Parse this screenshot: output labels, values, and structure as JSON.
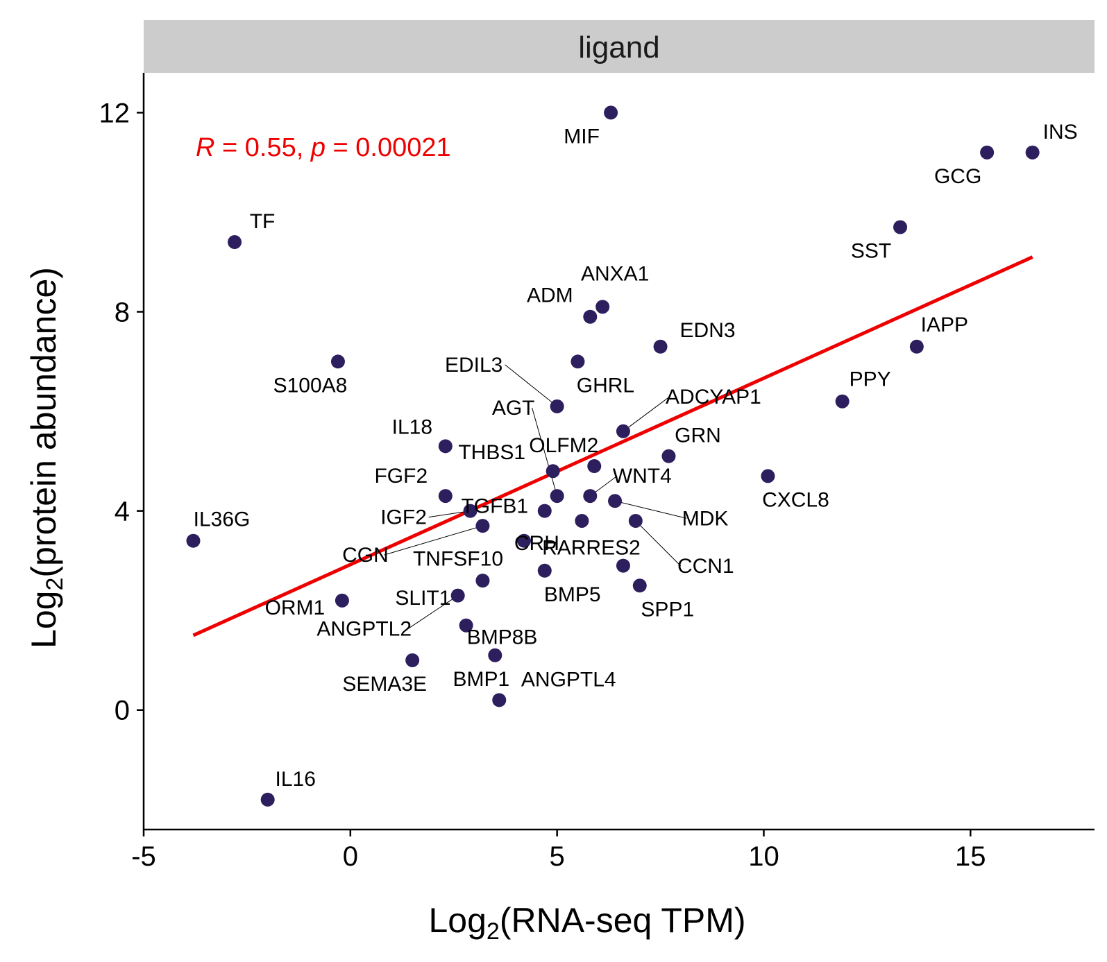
{
  "chart_data": {
    "type": "scatter",
    "facet_label": "ligand",
    "xlabel": {
      "prefix": "Log",
      "sub": "2",
      "rest": "(RNA-seq TPM)"
    },
    "ylabel": {
      "prefix": "Log",
      "sub": "2",
      "rest": "(protein abundance)"
    },
    "xlim": [
      -5,
      18
    ],
    "ylim": [
      -2.4,
      12.8
    ],
    "x_ticks": [
      -5,
      0,
      5,
      10,
      15
    ],
    "y_ticks": [
      0,
      4,
      8,
      12
    ],
    "x_tick_labels": [
      "-5",
      "0",
      "5",
      "10",
      "15"
    ],
    "y_tick_labels": [
      "0",
      "4",
      "8",
      "12"
    ],
    "grid": false,
    "point_color": "#2d1e5e",
    "fit_color": "#ee0000",
    "annotation": {
      "r_symbol": "R",
      "r_value": " = 0.55, ",
      "p_symbol": "p",
      "p_value": " = 0.00021",
      "color": "#ee0000"
    },
    "regression": {
      "x": [
        -3.8,
        16.5
      ],
      "y": [
        1.5,
        9.1
      ]
    },
    "points": [
      {
        "label": "MIF",
        "x": 6.3,
        "y": 12.0
      },
      {
        "label": "INS",
        "x": 16.5,
        "y": 11.2
      },
      {
        "label": "GCG",
        "x": 15.4,
        "y": 11.2
      },
      {
        "label": "SST",
        "x": 13.3,
        "y": 9.7
      },
      {
        "label": "TF",
        "x": -2.8,
        "y": 9.4
      },
      {
        "label": "ANXA1",
        "x": 6.1,
        "y": 8.1
      },
      {
        "label": "ADM",
        "x": 5.8,
        "y": 7.9
      },
      {
        "label": "EDN3",
        "x": 7.5,
        "y": 7.3
      },
      {
        "label": "IAPP",
        "x": 13.7,
        "y": 7.3
      },
      {
        "label": "S100A8",
        "x": -0.3,
        "y": 7.0
      },
      {
        "label": "GHRL",
        "x": 5.5,
        "y": 7.0
      },
      {
        "label": "EDIL3",
        "x": 5.0,
        "y": 6.1
      },
      {
        "label": "PPY",
        "x": 11.9,
        "y": 6.2
      },
      {
        "label": "ADCYAP1",
        "x": 6.6,
        "y": 5.6
      },
      {
        "label": "IL18",
        "x": 2.3,
        "y": 5.3
      },
      {
        "label": "GRN",
        "x": 7.7,
        "y": 5.1
      },
      {
        "label": "OLFM2",
        "x": 5.9,
        "y": 4.9
      },
      {
        "label": "THBS1",
        "x": 4.9,
        "y": 4.8
      },
      {
        "label": "CXCL8",
        "x": 10.1,
        "y": 4.7
      },
      {
        "label": "FGF2",
        "x": 2.3,
        "y": 4.3
      },
      {
        "label": "AGT",
        "x": 5.0,
        "y": 4.3
      },
      {
        "label": "WNT4",
        "x": 5.8,
        "y": 4.3
      },
      {
        "label": "MDK",
        "x": 6.4,
        "y": 4.2
      },
      {
        "label": "TGFB1",
        "x": 4.7,
        "y": 4.0
      },
      {
        "label": "IGF2",
        "x": 2.9,
        "y": 4.0
      },
      {
        "label": "CRH",
        "x": 5.6,
        "y": 3.8
      },
      {
        "label": "CCN1",
        "x": 6.9,
        "y": 3.8
      },
      {
        "label": "CGN",
        "x": 3.2,
        "y": 3.7
      },
      {
        "label": "IL36G",
        "x": -3.8,
        "y": 3.4
      },
      {
        "label": "TNFSF10",
        "x": 4.2,
        "y": 3.4
      },
      {
        "label": "RARRES2",
        "x": 6.6,
        "y": 2.9
      },
      {
        "label": "BMP5",
        "x": 4.7,
        "y": 2.8
      },
      {
        "label": "SLIT1",
        "x": 3.2,
        "y": 2.6
      },
      {
        "label": "SPP1",
        "x": 7.0,
        "y": 2.5
      },
      {
        "label": "ANGPTL2",
        "x": 2.6,
        "y": 2.3
      },
      {
        "label": "ORM1",
        "x": -0.2,
        "y": 2.2
      },
      {
        "label": "BMP8B",
        "x": 2.8,
        "y": 1.7
      },
      {
        "label": "BMP1",
        "x": 3.5,
        "y": 1.1
      },
      {
        "label": "SEMA3E",
        "x": 1.5,
        "y": 1.0
      },
      {
        "label": "ANGPTL4",
        "x": 3.6,
        "y": 0.2
      },
      {
        "label": "IL16",
        "x": -2.0,
        "y": -1.8
      }
    ]
  }
}
